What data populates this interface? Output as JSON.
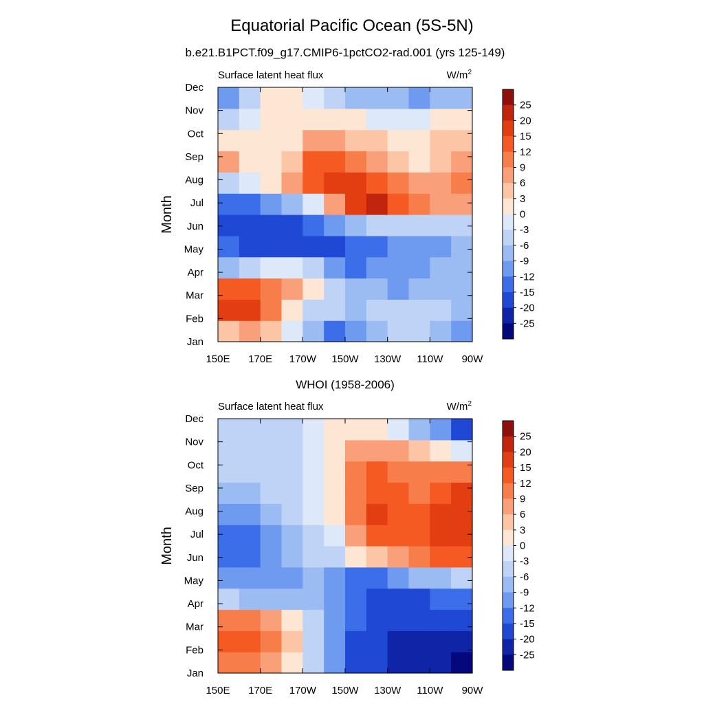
{
  "figure": {
    "title": "Equatorial Pacific Ocean (5S-5N)",
    "subtitle": "b.e21.B1PCT.f09_g17.CMIP6-1pctCO2-rad.001 (yrs 125-149)"
  },
  "colorbar": {
    "levels": [
      25,
      20,
      15,
      12,
      9,
      6,
      3,
      0,
      -3,
      -6,
      -9,
      -12,
      -15,
      -20,
      -25
    ],
    "level_labels": [
      "25",
      "20",
      "15",
      "12",
      "9",
      "6",
      "3",
      "0",
      "-3",
      "-6",
      "-9",
      "-12",
      "-15",
      "-20",
      "-25"
    ],
    "colors_top_to_bottom": [
      "#8f0f0c",
      "#c2250e",
      "#e33d12",
      "#f45a22",
      "#f77d4b",
      "#f9a07a",
      "#fcc5a6",
      "#fde6d3",
      "#dde9f9",
      "#bfd3f6",
      "#9bbcf2",
      "#6e9bef",
      "#3b6ee8",
      "#1f48d4",
      "#1024a8",
      "#05087a"
    ]
  },
  "chart_data": [
    {
      "type": "heatmap",
      "panel_title": "",
      "left_label": "Surface latent heat flux",
      "units_label": "W/m",
      "units_superscript": "2",
      "ylabel": "Month",
      "xlabel": "",
      "x_tick_labels": [
        "150E",
        "170E",
        "170W",
        "150W",
        "130W",
        "110W",
        "90W"
      ],
      "x_longitude_east": [
        150,
        170,
        190,
        210,
        230,
        250,
        270
      ],
      "y_tick_labels": [
        "Jan",
        "Feb",
        "Mar",
        "Apr",
        "May",
        "Jun",
        "Jul",
        "Aug",
        "Sep",
        "Oct",
        "Nov",
        "Dec"
      ],
      "values_rows_jan_to_dec": [
        [
          6,
          9,
          6,
          0,
          -6,
          -12,
          -9,
          -6,
          -3,
          -3,
          -6,
          -9
        ],
        [
          20,
          20,
          12,
          3,
          -3,
          -3,
          -6,
          -3,
          -3,
          -3,
          -3,
          -6
        ],
        [
          15,
          15,
          12,
          9,
          3,
          -3,
          -6,
          -6,
          -9,
          -6,
          -6,
          -6
        ],
        [
          -6,
          -3,
          0,
          0,
          -3,
          -9,
          -12,
          -9,
          -9,
          -9,
          -6,
          -6
        ],
        [
          -12,
          -15,
          -15,
          -15,
          -15,
          -15,
          -12,
          -12,
          -9,
          -9,
          -9,
          -6
        ],
        [
          -15,
          -15,
          -15,
          -15,
          -12,
          -9,
          -6,
          -3,
          -3,
          -3,
          -3,
          -3
        ],
        [
          -12,
          -12,
          -9,
          -6,
          0,
          9,
          20,
          25,
          15,
          12,
          9,
          9
        ],
        [
          -3,
          0,
          3,
          9,
          15,
          20,
          20,
          15,
          12,
          9,
          9,
          12
        ],
        [
          9,
          3,
          3,
          6,
          15,
          15,
          12,
          9,
          6,
          3,
          6,
          9
        ],
        [
          3,
          3,
          3,
          3,
          9,
          9,
          6,
          6,
          3,
          3,
          6,
          6
        ],
        [
          -3,
          0,
          3,
          3,
          3,
          3,
          3,
          0,
          0,
          0,
          3,
          3
        ],
        [
          -9,
          -3,
          3,
          3,
          0,
          -3,
          -6,
          -6,
          -6,
          -9,
          -6,
          -6
        ]
      ]
    },
    {
      "type": "heatmap",
      "panel_title": "WHOI (1958-2006)",
      "left_label": "Surface latent heat flux",
      "units_label": "W/m",
      "units_superscript": "2",
      "ylabel": "Month",
      "xlabel": "",
      "x_tick_labels": [
        "150E",
        "170E",
        "170W",
        "150W",
        "130W",
        "110W",
        "90W"
      ],
      "x_longitude_east": [
        150,
        170,
        190,
        210,
        230,
        250,
        270
      ],
      "y_tick_labels": [
        "Jan",
        "Feb",
        "Mar",
        "Apr",
        "May",
        "Jun",
        "Jul",
        "Aug",
        "Sep",
        "Oct",
        "Nov",
        "Dec"
      ],
      "values_rows_jan_to_dec": [
        [
          12,
          12,
          9,
          3,
          -3,
          -9,
          -15,
          -15,
          -20,
          -20,
          -20,
          -25
        ],
        [
          15,
          15,
          12,
          6,
          -3,
          -9,
          -15,
          -15,
          -20,
          -20,
          -20,
          -20
        ],
        [
          12,
          12,
          9,
          3,
          -3,
          -9,
          -12,
          -15,
          -15,
          -15,
          -15,
          -15
        ],
        [
          -3,
          -6,
          -6,
          -6,
          -6,
          -9,
          -12,
          -15,
          -15,
          -15,
          -12,
          -12
        ],
        [
          -9,
          -9,
          -9,
          -9,
          -6,
          -9,
          -12,
          -12,
          -9,
          -6,
          -6,
          -3
        ],
        [
          -12,
          -12,
          -9,
          -6,
          -3,
          -3,
          3,
          6,
          9,
          12,
          15,
          15
        ],
        [
          -12,
          -12,
          -9,
          -6,
          -3,
          0,
          9,
          15,
          15,
          15,
          20,
          20
        ],
        [
          -9,
          -9,
          -6,
          -3,
          0,
          3,
          12,
          20,
          15,
          15,
          20,
          20
        ],
        [
          -6,
          -6,
          -3,
          -3,
          0,
          3,
          12,
          15,
          15,
          12,
          15,
          20
        ],
        [
          -3,
          -3,
          -3,
          -3,
          0,
          3,
          12,
          15,
          12,
          12,
          12,
          12
        ],
        [
          -3,
          -3,
          -3,
          -3,
          0,
          3,
          9,
          9,
          9,
          6,
          3,
          0
        ],
        [
          -3,
          -3,
          -3,
          -3,
          0,
          3,
          3,
          3,
          0,
          -6,
          -9,
          -15
        ]
      ]
    }
  ]
}
